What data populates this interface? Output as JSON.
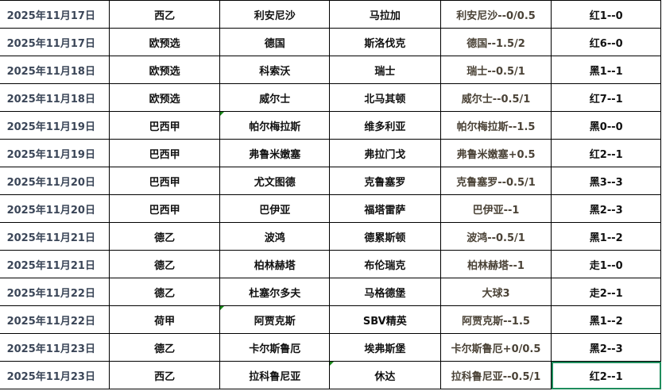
{
  "rows": [
    {
      "date": "2025年11月17日",
      "league": "西乙",
      "home": "利安尼沙",
      "away": "马拉加",
      "handicap": "利安尼沙--0/0.5",
      "result": "红1--0"
    },
    {
      "date": "2025年11月17日",
      "league": "欧预选",
      "home": "德国",
      "away": "斯洛伐克",
      "handicap": "德国--1.5/2",
      "result": "红6--0"
    },
    {
      "date": "2025年11月18日",
      "league": "欧预选",
      "home": "科索沃",
      "away": "瑞士",
      "handicap": "瑞士--0.5/1",
      "result": "黑1--1"
    },
    {
      "date": "2025年11月18日",
      "league": "欧预选",
      "home": "威尔士",
      "away": "北马其顿",
      "handicap": "威尔士--0.5/1",
      "result": "红7--1"
    },
    {
      "date": "2025年11月19日",
      "league": "巴西甲",
      "home": "帕尔梅拉斯",
      "away": "维多利亚",
      "handicap": "帕尔梅拉斯--1.5",
      "result": "黑0--0",
      "mark": "home"
    },
    {
      "date": "2025年11月19日",
      "league": "巴西甲",
      "home": "弗鲁米嫩塞",
      "away": "弗拉门戈",
      "handicap": "弗鲁米嫩塞+0.5",
      "result": "红2--1"
    },
    {
      "date": "2025年11月20日",
      "league": "巴西甲",
      "home": "尤文图德",
      "away": "克鲁塞罗",
      "handicap": "克鲁塞罗--0.5/1",
      "result": "黑3--3"
    },
    {
      "date": "2025年11月20日",
      "league": "巴西甲",
      "home": "巴伊亚",
      "away": "福塔雷萨",
      "handicap": "巴伊亚--1",
      "result": "黑2--3"
    },
    {
      "date": "2025年11月21日",
      "league": "德乙",
      "home": "波鸿",
      "away": "德累斯顿",
      "handicap": "波鸿--0.5/1",
      "result": "黑1--2"
    },
    {
      "date": "2025年11月21日",
      "league": "德乙",
      "home": "柏林赫塔",
      "away": "布伦瑞克",
      "handicap": "柏林赫塔--1",
      "result": "走1--0"
    },
    {
      "date": "2025年11月22日",
      "league": "德乙",
      "home": "杜塞尔多夫",
      "away": "马格德堡",
      "handicap": "大球3",
      "result": "走2--1"
    },
    {
      "date": "2025年11月22日",
      "league": "荷甲",
      "home": "阿贾克斯",
      "away": "SBV精英",
      "handicap": "阿贾克斯--1.5",
      "result": "黑1--2",
      "mark": "home"
    },
    {
      "date": "2025年11月23日",
      "league": "德乙",
      "home": "卡尔斯鲁厄",
      "away": "埃弗斯堡",
      "handicap": "卡尔斯鲁厄+0/0.5",
      "result": "黑2--3"
    },
    {
      "date": "2025年11月23日",
      "league": "西乙",
      "home": "拉科鲁尼亚",
      "away": "休达",
      "handicap": "拉科鲁尼亚--0.5/1",
      "result": "红2--1",
      "mark": "away",
      "selected": true
    }
  ],
  "colors": {
    "selection": "#1e8c5c",
    "comment_marker": "#1a8a1a"
  }
}
